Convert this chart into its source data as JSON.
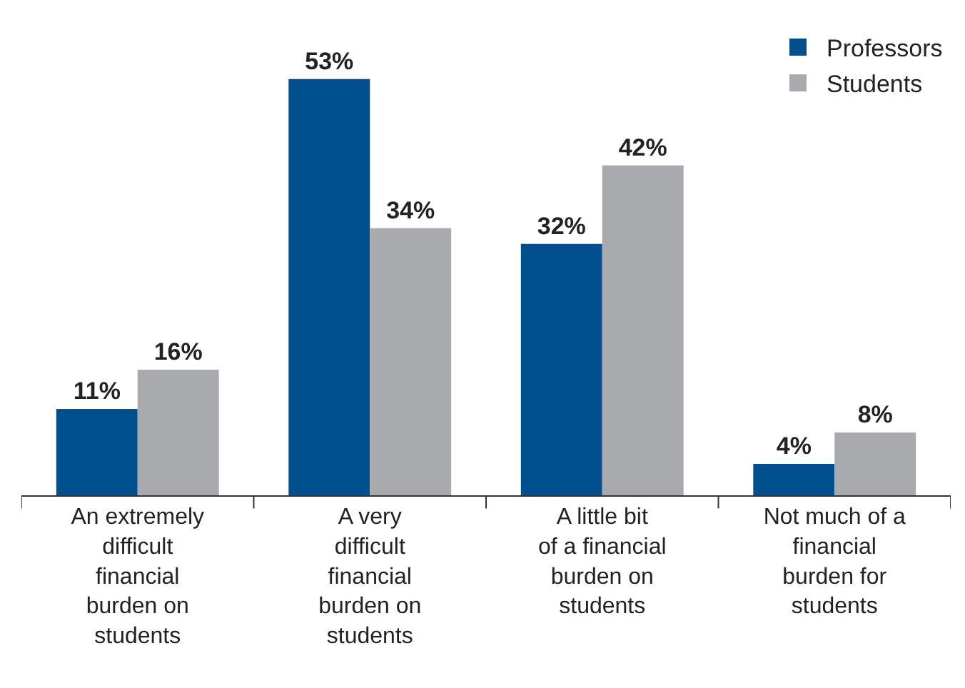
{
  "chart_data": {
    "type": "bar",
    "categories": [
      "An extremely difficult financial burden on students",
      "A very difficult financial burden on students",
      "A little bit of a financial burden on students",
      "Not much of a financial burden for students"
    ],
    "series": [
      {
        "name": "Professors",
        "color": "#004f8e",
        "values": [
          11,
          53,
          32,
          4
        ],
        "value_labels": [
          "11%",
          "53%",
          "32%",
          "4%"
        ]
      },
      {
        "name": "Students",
        "color": "#a8aaad",
        "values": [
          16,
          34,
          42,
          8
        ],
        "value_labels": [
          "16%",
          "34%",
          "42%",
          "8%"
        ]
      }
    ],
    "legend": "top right"
  }
}
